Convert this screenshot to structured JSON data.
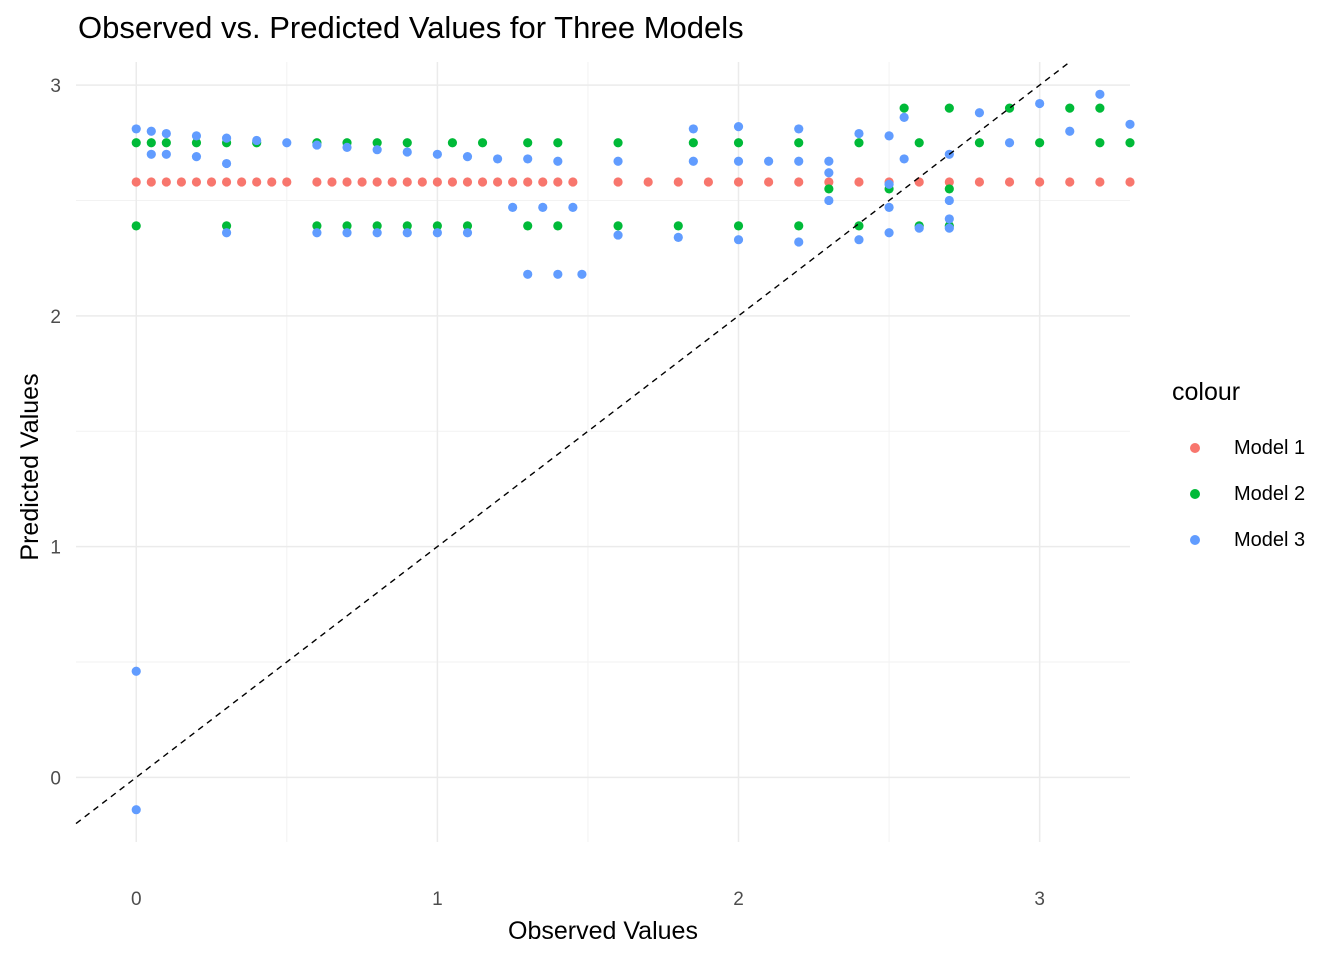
{
  "chart_data": {
    "type": "scatter",
    "title": "Observed vs. Predicted Values for Three Models",
    "xlabel": "Observed Values",
    "ylabel": "Predicted Values",
    "xlim": [
      -0.2,
      3.3
    ],
    "ylim": [
      -0.28,
      3.1
    ],
    "x_ticks": [
      "0",
      "1",
      "2",
      "3"
    ],
    "y_ticks": [
      "0",
      "1",
      "2",
      "3"
    ],
    "grid": true,
    "reference_line": {
      "style": "dashed",
      "slope": 1,
      "intercept": 0,
      "color": "#000000"
    },
    "legend": {
      "title": "colour",
      "position": "right"
    },
    "series": [
      {
        "name": "Model 1",
        "color": "#F8766D",
        "points": [
          [
            0.0,
            2.58
          ],
          [
            0.05,
            2.58
          ],
          [
            0.1,
            2.58
          ],
          [
            0.15,
            2.58
          ],
          [
            0.2,
            2.58
          ],
          [
            0.25,
            2.58
          ],
          [
            0.3,
            2.58
          ],
          [
            0.35,
            2.58
          ],
          [
            0.4,
            2.58
          ],
          [
            0.45,
            2.58
          ],
          [
            0.5,
            2.58
          ],
          [
            0.6,
            2.58
          ],
          [
            0.65,
            2.58
          ],
          [
            0.7,
            2.58
          ],
          [
            0.75,
            2.58
          ],
          [
            0.8,
            2.58
          ],
          [
            0.85,
            2.58
          ],
          [
            0.9,
            2.58
          ],
          [
            0.95,
            2.58
          ],
          [
            1.0,
            2.58
          ],
          [
            1.05,
            2.58
          ],
          [
            1.1,
            2.58
          ],
          [
            1.15,
            2.58
          ],
          [
            1.2,
            2.58
          ],
          [
            1.25,
            2.58
          ],
          [
            1.3,
            2.58
          ],
          [
            1.35,
            2.58
          ],
          [
            1.4,
            2.58
          ],
          [
            1.45,
            2.58
          ],
          [
            1.6,
            2.58
          ],
          [
            1.7,
            2.58
          ],
          [
            1.8,
            2.58
          ],
          [
            1.9,
            2.58
          ],
          [
            2.0,
            2.58
          ],
          [
            2.1,
            2.58
          ],
          [
            2.2,
            2.58
          ],
          [
            2.3,
            2.58
          ],
          [
            2.4,
            2.58
          ],
          [
            2.5,
            2.58
          ],
          [
            2.6,
            2.58
          ],
          [
            2.7,
            2.58
          ],
          [
            2.8,
            2.58
          ],
          [
            2.9,
            2.58
          ],
          [
            3.0,
            2.58
          ],
          [
            3.1,
            2.58
          ],
          [
            3.2,
            2.58
          ],
          [
            3.3,
            2.58
          ]
        ]
      },
      {
        "name": "Model 2",
        "color": "#00BA38",
        "points": [
          [
            0.0,
            2.75
          ],
          [
            0.05,
            2.75
          ],
          [
            0.1,
            2.75
          ],
          [
            0.2,
            2.75
          ],
          [
            0.3,
            2.75
          ],
          [
            0.4,
            2.75
          ],
          [
            0.6,
            2.75
          ],
          [
            0.7,
            2.75
          ],
          [
            0.8,
            2.75
          ],
          [
            0.9,
            2.75
          ],
          [
            1.05,
            2.75
          ],
          [
            1.15,
            2.75
          ],
          [
            1.3,
            2.75
          ],
          [
            1.4,
            2.75
          ],
          [
            1.6,
            2.75
          ],
          [
            1.85,
            2.75
          ],
          [
            2.0,
            2.75
          ],
          [
            2.2,
            2.75
          ],
          [
            2.4,
            2.75
          ],
          [
            2.6,
            2.75
          ],
          [
            2.8,
            2.75
          ],
          [
            3.0,
            2.75
          ],
          [
            3.2,
            2.75
          ],
          [
            3.3,
            2.75
          ],
          [
            0.0,
            2.39
          ],
          [
            0.3,
            2.39
          ],
          [
            0.6,
            2.39
          ],
          [
            0.7,
            2.39
          ],
          [
            0.8,
            2.39
          ],
          [
            0.9,
            2.39
          ],
          [
            1.0,
            2.39
          ],
          [
            1.1,
            2.39
          ],
          [
            1.3,
            2.39
          ],
          [
            1.4,
            2.39
          ],
          [
            1.6,
            2.39
          ],
          [
            1.8,
            2.39
          ],
          [
            2.0,
            2.39
          ],
          [
            2.2,
            2.39
          ],
          [
            2.4,
            2.39
          ],
          [
            2.6,
            2.39
          ],
          [
            2.7,
            2.39
          ],
          [
            2.3,
            2.55
          ],
          [
            2.5,
            2.55
          ],
          [
            2.7,
            2.55
          ],
          [
            2.55,
            2.9
          ],
          [
            2.7,
            2.9
          ],
          [
            2.9,
            2.9
          ],
          [
            3.1,
            2.9
          ],
          [
            3.2,
            2.9
          ]
        ]
      },
      {
        "name": "Model 3",
        "color": "#619CFF",
        "points": [
          [
            0.0,
            0.46
          ],
          [
            0.0,
            -0.14
          ],
          [
            0.0,
            2.81
          ],
          [
            0.05,
            2.8
          ],
          [
            0.1,
            2.79
          ],
          [
            0.2,
            2.78
          ],
          [
            0.3,
            2.77
          ],
          [
            0.4,
            2.76
          ],
          [
            0.5,
            2.75
          ],
          [
            0.6,
            2.74
          ],
          [
            0.7,
            2.73
          ],
          [
            0.8,
            2.72
          ],
          [
            0.9,
            2.71
          ],
          [
            1.0,
            2.7
          ],
          [
            1.1,
            2.69
          ],
          [
            1.2,
            2.68
          ],
          [
            1.3,
            2.68
          ],
          [
            1.4,
            2.67
          ],
          [
            0.05,
            2.7
          ],
          [
            0.1,
            2.7
          ],
          [
            0.2,
            2.69
          ],
          [
            0.3,
            2.66
          ],
          [
            0.3,
            2.36
          ],
          [
            0.6,
            2.36
          ],
          [
            0.7,
            2.36
          ],
          [
            0.8,
            2.36
          ],
          [
            0.9,
            2.36
          ],
          [
            1.0,
            2.36
          ],
          [
            1.1,
            2.36
          ],
          [
            1.25,
            2.47
          ],
          [
            1.35,
            2.47
          ],
          [
            1.45,
            2.47
          ],
          [
            1.3,
            2.18
          ],
          [
            1.4,
            2.18
          ],
          [
            1.48,
            2.18
          ],
          [
            1.6,
            2.67
          ],
          [
            1.85,
            2.67
          ],
          [
            2.0,
            2.67
          ],
          [
            2.1,
            2.67
          ],
          [
            2.2,
            2.67
          ],
          [
            2.3,
            2.67
          ],
          [
            1.6,
            2.35
          ],
          [
            1.8,
            2.34
          ],
          [
            2.0,
            2.33
          ],
          [
            2.2,
            2.32
          ],
          [
            2.4,
            2.33
          ],
          [
            2.5,
            2.36
          ],
          [
            2.6,
            2.38
          ],
          [
            2.7,
            2.38
          ],
          [
            1.85,
            2.81
          ],
          [
            2.0,
            2.82
          ],
          [
            2.2,
            2.81
          ],
          [
            2.4,
            2.79
          ],
          [
            2.5,
            2.78
          ],
          [
            2.3,
            2.62
          ],
          [
            2.5,
            2.57
          ],
          [
            2.7,
            2.5
          ],
          [
            2.3,
            2.5
          ],
          [
            2.5,
            2.47
          ],
          [
            2.7,
            2.42
          ],
          [
            2.55,
            2.68
          ],
          [
            2.7,
            2.7
          ],
          [
            2.9,
            2.75
          ],
          [
            3.1,
            2.8
          ],
          [
            3.3,
            2.83
          ],
          [
            2.55,
            2.86
          ],
          [
            2.8,
            2.88
          ],
          [
            3.0,
            2.92
          ],
          [
            3.2,
            2.96
          ]
        ]
      }
    ]
  }
}
